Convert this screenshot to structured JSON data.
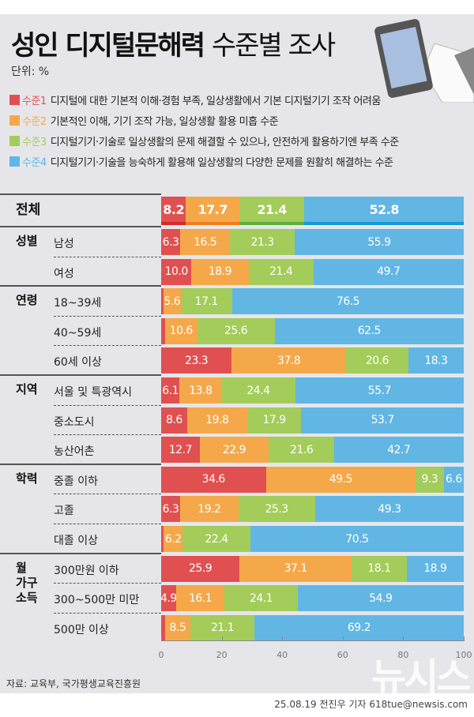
{
  "header": {
    "title_bold": "성인 디지털문해력",
    "title_light": "수준별 조사",
    "unit": "단위: %"
  },
  "legend": [
    {
      "level": "수준1",
      "desc": "디지털에 대한 기본적 이해·경험 부족, 일상생활에서 기본 디지털기기 조작 어려움",
      "color": "#e05050"
    },
    {
      "level": "수준2",
      "desc": "기본적인 이해, 기기 조작 가능, 일상생활 활용 미흡 수준",
      "color": "#f5a84a"
    },
    {
      "level": "수준3",
      "desc": "디지털기기·기술로 일상생활의 문제 해결할 수 있으나, 안전하게 활용하기엔 부족 수준",
      "color": "#a3cc5a"
    },
    {
      "level": "수준4",
      "desc": "디지털기기·기술을 능숙하게 활용해 일상생활의 다양한 문제를 원활히 해결하는 수준",
      "color": "#62b6e4"
    }
  ],
  "chart_data": {
    "type": "bar",
    "stacked": true,
    "orientation": "horizontal",
    "title": "성인 디지털문해력 수준별 조사",
    "xlim": [
      0,
      100
    ],
    "xticks": [
      0,
      20,
      40,
      60,
      80,
      100
    ],
    "series_names": [
      "수준1",
      "수준2",
      "수준3",
      "수준4"
    ],
    "groups": [
      {
        "name": "전체",
        "rows": [
          {
            "label": "",
            "values": [
              8.2,
              17.7,
              21.4,
              52.8
            ]
          }
        ]
      },
      {
        "name": "성별",
        "rows": [
          {
            "label": "남성",
            "values": [
              6.3,
              16.5,
              21.3,
              55.9
            ]
          },
          {
            "label": "여성",
            "values": [
              10.0,
              18.9,
              21.4,
              49.7
            ]
          }
        ]
      },
      {
        "name": "연령",
        "rows": [
          {
            "label": "18~39세",
            "values": [
              0.8,
              5.6,
              17.1,
              76.5
            ],
            "unlabeled": [
              0
            ]
          },
          {
            "label": "40~59세",
            "values": [
              1.3,
              10.6,
              25.6,
              62.5
            ],
            "unlabeled": [
              0
            ]
          },
          {
            "label": "60세 이상",
            "values": [
              23.3,
              37.8,
              20.6,
              18.3
            ]
          }
        ]
      },
      {
        "name": "지역",
        "rows": [
          {
            "label": "서울 및 특광역시",
            "values": [
              6.1,
              13.8,
              24.4,
              55.7
            ]
          },
          {
            "label": "중소도시",
            "values": [
              8.6,
              19.8,
              17.9,
              53.7
            ]
          },
          {
            "label": "농산어촌",
            "values": [
              12.7,
              22.9,
              21.6,
              42.7
            ]
          }
        ]
      },
      {
        "name": "학력",
        "rows": [
          {
            "label": "중졸 이하",
            "values": [
              34.6,
              49.5,
              9.3,
              6.6
            ]
          },
          {
            "label": "고졸",
            "values": [
              6.3,
              19.2,
              25.3,
              49.3
            ]
          },
          {
            "label": "대졸 이상",
            "values": [
              0.9,
              6.2,
              22.4,
              70.5
            ],
            "unlabeled": [
              0
            ]
          }
        ]
      },
      {
        "name": "월\n가구\n소득",
        "rows": [
          {
            "label": "300만원 이하",
            "values": [
              25.9,
              37.1,
              18.1,
              18.9
            ]
          },
          {
            "label": "300~500만 미만",
            "values": [
              4.9,
              16.1,
              24.1,
              54.9
            ]
          },
          {
            "label": "500만 이상",
            "values": [
              1.2,
              8.5,
              21.1,
              69.2
            ],
            "unlabeled": [
              0
            ]
          }
        ]
      }
    ]
  },
  "footer": {
    "source": "자료: 교육부, 국가평생교육진흥원",
    "credit": "25.08.19 전진우 기자 618tue@newsis.com",
    "watermark": "뉴시스"
  }
}
